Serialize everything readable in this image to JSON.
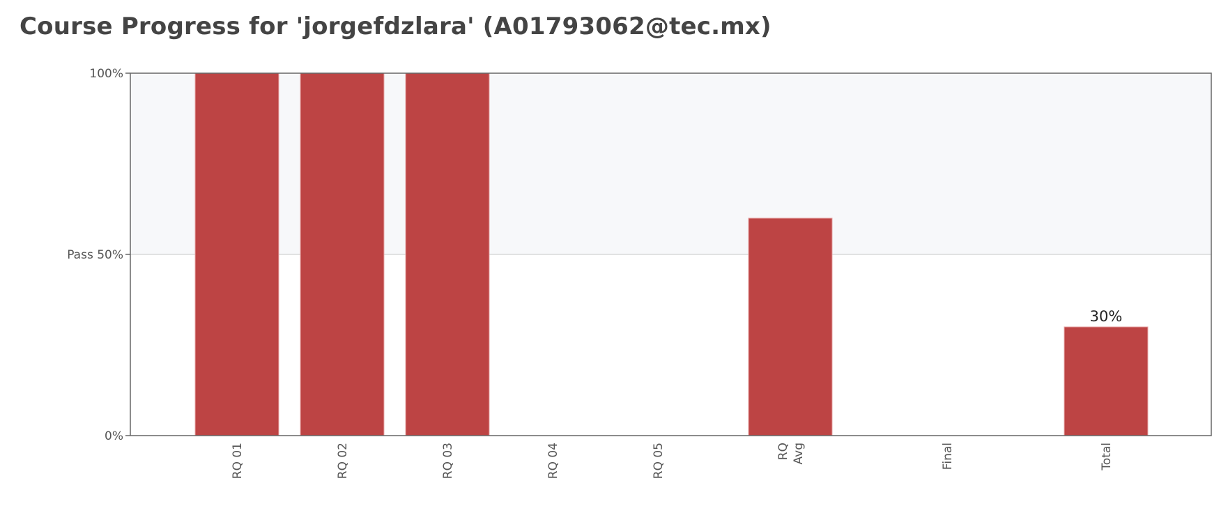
{
  "header": {
    "title": "Course Progress for 'jorgefdzlara' (A01793062@tec.mx)"
  },
  "colors": {
    "bar": "#bd4444",
    "pass_band": "#f7f8fa",
    "axis": "#666666",
    "pass_line": "#d9d9d9"
  },
  "chart_data": {
    "type": "bar",
    "title": "Course Progress for 'jorgefdzlara' (A01793062@tec.mx)",
    "categories": [
      [
        "RQ 01"
      ],
      [
        "RQ 02"
      ],
      [
        "RQ 03"
      ],
      [
        "RQ 04"
      ],
      [
        "RQ 05"
      ],
      [
        "RQ",
        "Avg"
      ],
      [
        "Final"
      ],
      [
        "Total"
      ]
    ],
    "values": [
      100,
      100,
      100,
      0,
      0,
      60,
      0,
      30
    ],
    "data_labels": [
      "",
      "",
      "",
      "",
      "",
      "",
      "",
      "30%"
    ],
    "ylim": [
      0,
      100
    ],
    "pass_threshold": 50,
    "y_ticks": [
      {
        "value": 0,
        "label": "0%"
      },
      {
        "value": 50,
        "label": "Pass 50%"
      },
      {
        "value": 100,
        "label": "100%"
      }
    ],
    "x_label_orientation": "vertical",
    "grid": false,
    "legend": "none"
  }
}
